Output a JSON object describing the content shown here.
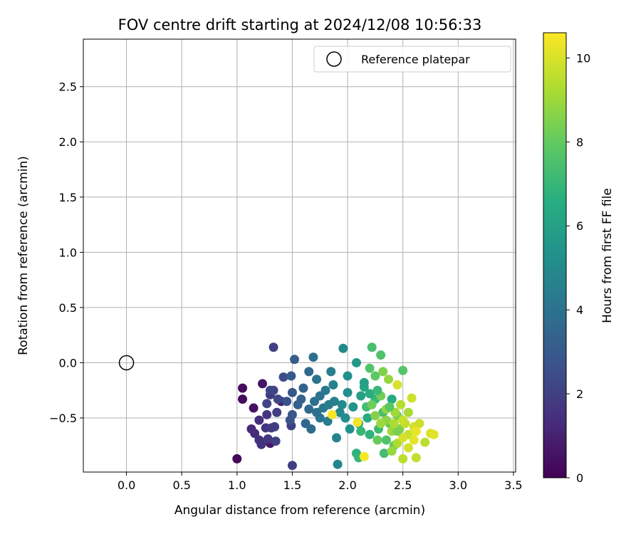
{
  "chart_data": {
    "type": "scatter",
    "title": "FOV centre drift starting at 2024/12/08 10:56:33",
    "xlabel": "Angular distance from reference (arcmin)",
    "ylabel": "Rotation from reference (arcmin)",
    "xlim": [
      -0.39,
      3.52
    ],
    "ylim": [
      -0.99,
      2.93
    ],
    "xticks": [
      "0.0",
      "0.5",
      "1.0",
      "1.5",
      "2.0",
      "2.5",
      "3.0",
      "3.5"
    ],
    "yticks": [
      "−0.5",
      "0.0",
      "0.5",
      "1.0",
      "1.5",
      "2.0",
      "2.5"
    ],
    "grid": true,
    "legend": {
      "position": "upper right",
      "entries": [
        "Reference platepar"
      ]
    },
    "colorbar": {
      "label": "Hours from first FF file",
      "ticks": [
        "0",
        "2",
        "4",
        "6",
        "8",
        "10"
      ],
      "range": [
        0,
        10.6
      ],
      "colormap": "viridis"
    },
    "reference": {
      "x": 0.0,
      "y": 0.0,
      "label": "Reference platepar"
    },
    "points": [
      {
        "x": 1.0,
        "y": -0.87,
        "h": 0.2
      },
      {
        "x": 1.05,
        "y": -0.23,
        "h": 0.3
      },
      {
        "x": 1.05,
        "y": -0.33,
        "h": 0.3
      },
      {
        "x": 1.15,
        "y": -0.41,
        "h": 0.5
      },
      {
        "x": 1.23,
        "y": -0.19,
        "h": 0.6
      },
      {
        "x": 1.3,
        "y": -0.73,
        "h": 0.7
      },
      {
        "x": 1.4,
        "y": -0.35,
        "h": 0.9
      },
      {
        "x": 1.13,
        "y": -0.6,
        "h": 1.2
      },
      {
        "x": 1.16,
        "y": -0.64,
        "h": 1.3
      },
      {
        "x": 1.2,
        "y": -0.52,
        "h": 1.4
      },
      {
        "x": 1.2,
        "y": -0.7,
        "h": 1.5
      },
      {
        "x": 1.22,
        "y": -0.74,
        "h": 1.5
      },
      {
        "x": 1.26,
        "y": -0.59,
        "h": 1.6
      },
      {
        "x": 1.27,
        "y": -0.47,
        "h": 1.7
      },
      {
        "x": 1.28,
        "y": -0.69,
        "h": 1.7
      },
      {
        "x": 1.3,
        "y": -0.29,
        "h": 1.8
      },
      {
        "x": 1.31,
        "y": -0.59,
        "h": 1.8
      },
      {
        "x": 1.34,
        "y": -0.58,
        "h": 1.9
      },
      {
        "x": 1.36,
        "y": -0.45,
        "h": 1.9
      },
      {
        "x": 1.33,
        "y": 0.14,
        "h": 2.0
      },
      {
        "x": 1.35,
        "y": -0.71,
        "h": 2.0
      },
      {
        "x": 1.49,
        "y": -0.57,
        "h": 2.0
      },
      {
        "x": 1.5,
        "y": -0.93,
        "h": 2.0
      },
      {
        "x": 1.27,
        "y": -0.37,
        "h": 2.1
      },
      {
        "x": 1.3,
        "y": -0.25,
        "h": 2.2
      },
      {
        "x": 1.33,
        "y": -0.25,
        "h": 2.2
      },
      {
        "x": 1.37,
        "y": -0.33,
        "h": 2.3
      },
      {
        "x": 1.42,
        "y": -0.13,
        "h": 2.5
      },
      {
        "x": 1.45,
        "y": -0.35,
        "h": 2.6
      },
      {
        "x": 1.48,
        "y": -0.52,
        "h": 2.7
      },
      {
        "x": 1.5,
        "y": -0.47,
        "h": 2.8
      },
      {
        "x": 1.5,
        "y": -0.27,
        "h": 2.9
      },
      {
        "x": 1.49,
        "y": -0.12,
        "h": 3.0
      },
      {
        "x": 1.52,
        "y": 0.03,
        "h": 3.1
      },
      {
        "x": 1.55,
        "y": -0.38,
        "h": 3.2
      },
      {
        "x": 1.58,
        "y": -0.33,
        "h": 3.3
      },
      {
        "x": 1.6,
        "y": -0.23,
        "h": 3.4
      },
      {
        "x": 1.62,
        "y": -0.55,
        "h": 3.5
      },
      {
        "x": 1.65,
        "y": -0.42,
        "h": 3.6
      },
      {
        "x": 1.67,
        "y": -0.6,
        "h": 3.7
      },
      {
        "x": 1.69,
        "y": 0.05,
        "h": 3.8
      },
      {
        "x": 1.7,
        "y": -0.35,
        "h": 3.9
      },
      {
        "x": 1.72,
        "y": -0.15,
        "h": 4.0
      },
      {
        "x": 1.75,
        "y": -0.5,
        "h": 4.1
      },
      {
        "x": 1.78,
        "y": -0.41,
        "h": 4.2
      },
      {
        "x": 1.8,
        "y": -0.25,
        "h": 4.3
      },
      {
        "x": 1.82,
        "y": -0.53,
        "h": 4.4
      },
      {
        "x": 1.85,
        "y": -0.08,
        "h": 4.5
      },
      {
        "x": 1.88,
        "y": -0.35,
        "h": 4.6
      },
      {
        "x": 1.9,
        "y": -0.68,
        "h": 4.7
      },
      {
        "x": 1.91,
        "y": -0.92,
        "h": 4.8
      },
      {
        "x": 1.93,
        "y": -0.45,
        "h": 4.9
      },
      {
        "x": 1.96,
        "y": 0.13,
        "h": 5.0
      },
      {
        "x": 1.98,
        "y": -0.5,
        "h": 5.1
      },
      {
        "x": 2.0,
        "y": -0.27,
        "h": 5.2
      },
      {
        "x": 2.02,
        "y": -0.6,
        "h": 5.3
      },
      {
        "x": 2.05,
        "y": -0.4,
        "h": 5.5
      },
      {
        "x": 2.08,
        "y": 0.0,
        "h": 5.6
      },
      {
        "x": 2.1,
        "y": -0.55,
        "h": 5.8
      },
      {
        "x": 1.65,
        "y": -0.08,
        "h": 3.6
      },
      {
        "x": 1.75,
        "y": -0.3,
        "h": 4.0
      },
      {
        "x": 1.83,
        "y": -0.38,
        "h": 4.4
      },
      {
        "x": 1.87,
        "y": -0.2,
        "h": 4.6
      },
      {
        "x": 1.95,
        "y": -0.38,
        "h": 5.0
      },
      {
        "x": 2.0,
        "y": -0.12,
        "h": 5.3
      },
      {
        "x": 1.72,
        "y": -0.45,
        "h": 3.9
      },
      {
        "x": 2.08,
        "y": -0.82,
        "h": 6.8
      },
      {
        "x": 2.1,
        "y": -0.86,
        "h": 7.0
      },
      {
        "x": 2.12,
        "y": -0.3,
        "h": 6.0
      },
      {
        "x": 2.15,
        "y": -0.22,
        "h": 6.2
      },
      {
        "x": 2.18,
        "y": -0.5,
        "h": 6.5
      },
      {
        "x": 2.2,
        "y": -0.65,
        "h": 6.8
      },
      {
        "x": 2.22,
        "y": 0.14,
        "h": 7.4
      },
      {
        "x": 2.25,
        "y": -0.33,
        "h": 7.0
      },
      {
        "x": 2.28,
        "y": -0.6,
        "h": 7.2
      },
      {
        "x": 2.3,
        "y": 0.07,
        "h": 7.6
      },
      {
        "x": 2.32,
        "y": -0.45,
        "h": 7.4
      },
      {
        "x": 2.33,
        "y": -0.82,
        "h": 7.3
      },
      {
        "x": 2.35,
        "y": -0.7,
        "h": 7.6
      },
      {
        "x": 2.38,
        "y": -0.55,
        "h": 7.9
      },
      {
        "x": 2.4,
        "y": -0.33,
        "h": 6.5
      },
      {
        "x": 2.42,
        "y": -0.75,
        "h": 8.0
      },
      {
        "x": 2.45,
        "y": -0.48,
        "h": 8.3
      },
      {
        "x": 2.47,
        "y": -0.6,
        "h": 8.5
      },
      {
        "x": 2.5,
        "y": -0.07,
        "h": 7.7
      },
      {
        "x": 2.12,
        "y": -0.62,
        "h": 7.0
      },
      {
        "x": 2.17,
        "y": -0.4,
        "h": 7.3
      },
      {
        "x": 2.2,
        "y": -0.05,
        "h": 7.7
      },
      {
        "x": 2.25,
        "y": -0.12,
        "h": 7.9
      },
      {
        "x": 2.27,
        "y": -0.7,
        "h": 8.1
      },
      {
        "x": 2.3,
        "y": -0.3,
        "h": 8.3
      },
      {
        "x": 2.32,
        "y": -0.08,
        "h": 8.5
      },
      {
        "x": 2.35,
        "y": -0.52,
        "h": 8.7
      },
      {
        "x": 2.37,
        "y": -0.15,
        "h": 8.9
      },
      {
        "x": 2.4,
        "y": -0.62,
        "h": 9.0
      },
      {
        "x": 2.43,
        "y": -0.45,
        "h": 9.1
      },
      {
        "x": 2.45,
        "y": -0.73,
        "h": 9.3
      },
      {
        "x": 2.48,
        "y": -0.38,
        "h": 9.4
      },
      {
        "x": 2.5,
        "y": -0.87,
        "h": 9.5
      },
      {
        "x": 2.52,
        "y": -0.55,
        "h": 9.6
      },
      {
        "x": 2.55,
        "y": -0.65,
        "h": 9.7
      },
      {
        "x": 2.58,
        "y": -0.32,
        "h": 9.8
      },
      {
        "x": 2.6,
        "y": -0.58,
        "h": 9.9
      },
      {
        "x": 2.62,
        "y": -0.86,
        "h": 9.6
      },
      {
        "x": 2.65,
        "y": -0.55,
        "h": 9.8
      },
      {
        "x": 2.7,
        "y": -0.72,
        "h": 9.5
      },
      {
        "x": 2.75,
        "y": -0.64,
        "h": 10.0
      },
      {
        "x": 2.78,
        "y": -0.65,
        "h": 10.1
      },
      {
        "x": 2.45,
        "y": -0.2,
        "h": 10.0
      },
      {
        "x": 2.35,
        "y": -0.42,
        "h": 8.8
      },
      {
        "x": 2.4,
        "y": -0.8,
        "h": 8.9
      },
      {
        "x": 2.55,
        "y": -0.77,
        "h": 9.9
      },
      {
        "x": 2.6,
        "y": -0.7,
        "h": 10.2
      },
      {
        "x": 2.5,
        "y": -0.68,
        "h": 10.0
      },
      {
        "x": 2.3,
        "y": -0.55,
        "h": 9.0
      },
      {
        "x": 2.25,
        "y": -0.48,
        "h": 8.6
      },
      {
        "x": 2.22,
        "y": -0.38,
        "h": 8.2
      },
      {
        "x": 1.86,
        "y": -0.47,
        "h": 10.5
      },
      {
        "x": 2.09,
        "y": -0.54,
        "h": 10.4
      },
      {
        "x": 2.15,
        "y": -0.85,
        "h": 10.5
      },
      {
        "x": 2.15,
        "y": -0.18,
        "h": 6.0
      },
      {
        "x": 2.2,
        "y": -0.28,
        "h": 6.6
      },
      {
        "x": 2.27,
        "y": -0.25,
        "h": 7.1
      },
      {
        "x": 2.38,
        "y": -0.4,
        "h": 7.8
      },
      {
        "x": 2.45,
        "y": -0.62,
        "h": 8.4
      },
      {
        "x": 2.55,
        "y": -0.45,
        "h": 9.2
      },
      {
        "x": 2.62,
        "y": -0.62,
        "h": 10.3
      },
      {
        "x": 2.5,
        "y": -0.52,
        "h": 9.7
      },
      {
        "x": 2.42,
        "y": -0.55,
        "h": 9.3
      }
    ]
  }
}
